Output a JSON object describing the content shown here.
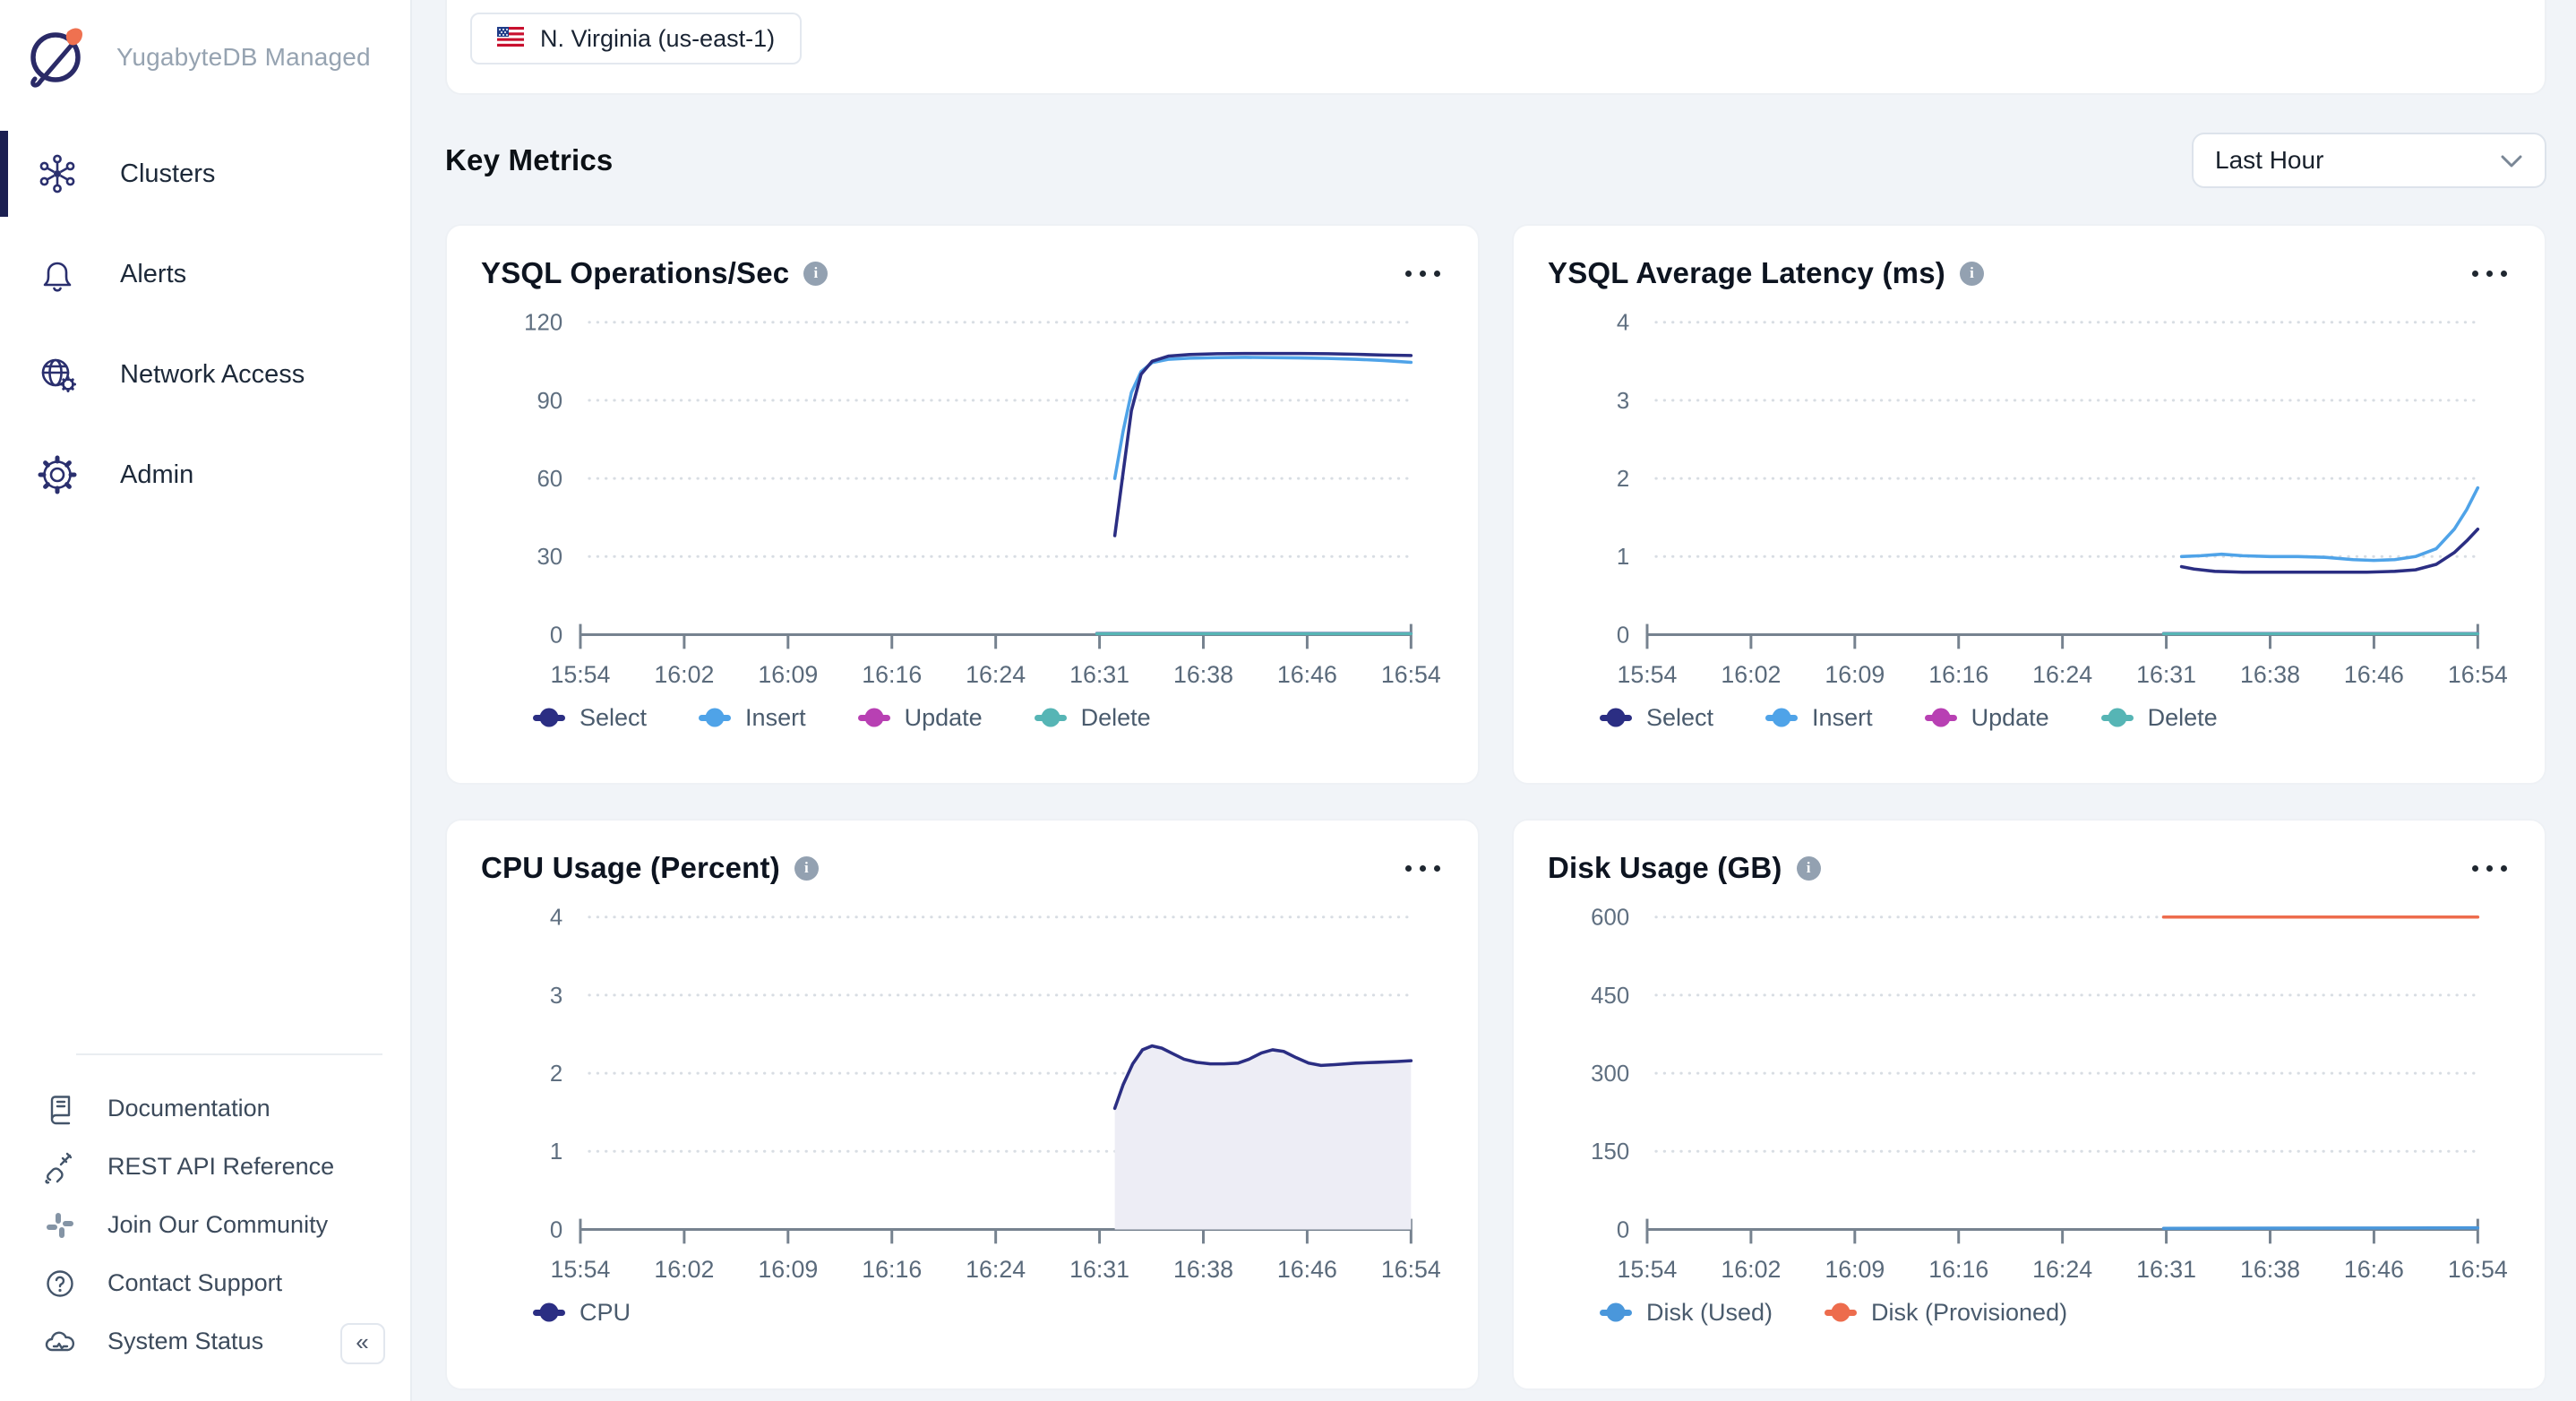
{
  "app": {
    "brand": "YugabyteDB Managed"
  },
  "sidebar": {
    "items": [
      {
        "label": "Clusters",
        "icon": "clusters-icon",
        "active": true
      },
      {
        "label": "Alerts",
        "icon": "bell-icon",
        "active": false
      },
      {
        "label": "Network Access",
        "icon": "globe-gear-icon",
        "active": false
      },
      {
        "label": "Admin",
        "icon": "gear-icon",
        "active": false
      }
    ],
    "footer_items": [
      {
        "label": "Documentation",
        "icon": "book-icon"
      },
      {
        "label": "REST API Reference",
        "icon": "plug-icon"
      },
      {
        "label": "Join Our Community",
        "icon": "slack-icon"
      },
      {
        "label": "Contact Support",
        "icon": "question-circle-icon"
      },
      {
        "label": "System Status",
        "icon": "cloud-status-icon"
      }
    ]
  },
  "header": {
    "region": {
      "label": "N. Virginia (us-east-1)",
      "flag": "us-flag-icon"
    },
    "section_title": "Key Metrics",
    "time_range_selected": "Last Hour"
  },
  "colors": {
    "select_navy": "#2B2E83",
    "insert_blue": "#4FA3E8",
    "update_magenta": "#B840B3",
    "delete_teal": "#56B5B5",
    "disk_used_blue": "#4A97DB",
    "disk_provisioned_orange": "#ED6C4D",
    "cpu_fill": "#EDEDF5",
    "accent_navy": "#1B1F51"
  },
  "chart_data": [
    {
      "type": "line",
      "title": "YSQL Operations/Sec",
      "x_tick_labels": [
        "15:54",
        "16:02",
        "16:09",
        "16:16",
        "16:24",
        "16:31",
        "16:38",
        "16:46",
        "16:54"
      ],
      "x_domain_minutes": [
        0,
        60
      ],
      "ylim": [
        0,
        120
      ],
      "yticks": [
        0,
        30,
        60,
        90,
        120
      ],
      "grid": "dotted-horizontal",
      "legend_position": "bottom",
      "series": [
        {
          "name": "Update",
          "color": "#B840B3",
          "points": [
            [
              37.3,
              0.5
            ],
            [
              60,
              0.5
            ]
          ]
        },
        {
          "name": "Delete",
          "color": "#56B5B5",
          "points": [
            [
              37.3,
              0.4
            ],
            [
              60,
              0.4
            ]
          ]
        },
        {
          "name": "Insert",
          "color": "#4FA3E8",
          "points": [
            [
              38.6,
              60
            ],
            [
              39.2,
              78
            ],
            [
              39.8,
              93
            ],
            [
              40.5,
              101
            ],
            [
              41.3,
              104.5
            ],
            [
              42.5,
              105.8
            ],
            [
              44,
              106.2
            ],
            [
              46,
              106.4
            ],
            [
              48,
              106.5
            ],
            [
              50,
              106.4
            ],
            [
              52,
              106.3
            ],
            [
              54,
              106.1
            ],
            [
              56,
              105.8
            ],
            [
              58,
              105.3
            ],
            [
              60,
              104.6
            ]
          ]
        },
        {
          "name": "Select",
          "color": "#2B2E83",
          "points": [
            [
              38.6,
              38
            ],
            [
              39.2,
              62
            ],
            [
              39.8,
              86
            ],
            [
              40.5,
              100
            ],
            [
              41.3,
              105
            ],
            [
              42.5,
              107
            ],
            [
              44,
              107.6
            ],
            [
              46,
              107.9
            ],
            [
              48,
              108
            ],
            [
              50,
              108
            ],
            [
              52,
              108
            ],
            [
              54,
              107.9
            ],
            [
              56,
              107.7
            ],
            [
              58,
              107.4
            ],
            [
              60,
              107.2
            ]
          ]
        }
      ],
      "legend_order": [
        "Select",
        "Insert",
        "Update",
        "Delete"
      ]
    },
    {
      "type": "line",
      "title": "YSQL Average Latency (ms)",
      "x_tick_labels": [
        "15:54",
        "16:02",
        "16:09",
        "16:16",
        "16:24",
        "16:31",
        "16:38",
        "16:46",
        "16:54"
      ],
      "x_domain_minutes": [
        0,
        60
      ],
      "ylim": [
        0,
        4
      ],
      "yticks": [
        0,
        1,
        2,
        3,
        4
      ],
      "grid": "dotted-horizontal",
      "legend_position": "bottom",
      "series": [
        {
          "name": "Update",
          "color": "#B840B3",
          "points": [
            [
              37.3,
              0.015
            ],
            [
              60,
              0.015
            ]
          ]
        },
        {
          "name": "Delete",
          "color": "#56B5B5",
          "points": [
            [
              37.3,
              0.012
            ],
            [
              60,
              0.012
            ]
          ]
        },
        {
          "name": "Insert",
          "color": "#4FA3E8",
          "points": [
            [
              38.6,
              1.0
            ],
            [
              40,
              1.01
            ],
            [
              41.5,
              1.03
            ],
            [
              43,
              1.01
            ],
            [
              45,
              1.0
            ],
            [
              47,
              1.0
            ],
            [
              49,
              0.99
            ],
            [
              51,
              0.96
            ],
            [
              52.5,
              0.95
            ],
            [
              54,
              0.96
            ],
            [
              55.5,
              1.0
            ],
            [
              57,
              1.1
            ],
            [
              58.3,
              1.35
            ],
            [
              59.2,
              1.6
            ],
            [
              60,
              1.88
            ]
          ]
        },
        {
          "name": "Select",
          "color": "#2B2E83",
          "points": [
            [
              38.6,
              0.87
            ],
            [
              39.5,
              0.84
            ],
            [
              41,
              0.81
            ],
            [
              43,
              0.8
            ],
            [
              46,
              0.8
            ],
            [
              49,
              0.8
            ],
            [
              52,
              0.8
            ],
            [
              54,
              0.81
            ],
            [
              55.5,
              0.83
            ],
            [
              57,
              0.9
            ],
            [
              58.3,
              1.05
            ],
            [
              59.2,
              1.2
            ],
            [
              60,
              1.35
            ]
          ]
        }
      ],
      "legend_order": [
        "Select",
        "Insert",
        "Update",
        "Delete"
      ]
    },
    {
      "type": "area",
      "title": "CPU Usage (Percent)",
      "x_tick_labels": [
        "15:54",
        "16:02",
        "16:09",
        "16:16",
        "16:24",
        "16:31",
        "16:38",
        "16:46",
        "16:54"
      ],
      "x_domain_minutes": [
        0,
        60
      ],
      "ylim": [
        0,
        4
      ],
      "yticks": [
        0,
        1,
        2,
        3,
        4
      ],
      "grid": "dotted-horizontal",
      "legend_position": "bottom",
      "series": [
        {
          "name": "CPU",
          "color": "#2B2E83",
          "fill": "#EDEDF5",
          "points": [
            [
              38.6,
              1.55
            ],
            [
              39.2,
              1.85
            ],
            [
              39.9,
              2.12
            ],
            [
              40.6,
              2.3
            ],
            [
              41.3,
              2.35
            ],
            [
              42,
              2.32
            ],
            [
              42.8,
              2.25
            ],
            [
              43.6,
              2.18
            ],
            [
              44.5,
              2.14
            ],
            [
              45.5,
              2.12
            ],
            [
              46.5,
              2.12
            ],
            [
              47.5,
              2.13
            ],
            [
              48.3,
              2.18
            ],
            [
              49.2,
              2.26
            ],
            [
              50,
              2.3
            ],
            [
              50.8,
              2.28
            ],
            [
              51.7,
              2.2
            ],
            [
              52.6,
              2.13
            ],
            [
              53.5,
              2.1
            ],
            [
              54.5,
              2.11
            ],
            [
              56,
              2.13
            ],
            [
              57.5,
              2.14
            ],
            [
              59,
              2.15
            ],
            [
              60,
              2.16
            ]
          ]
        }
      ],
      "legend_order": [
        "CPU"
      ]
    },
    {
      "type": "line",
      "title": "Disk Usage (GB)",
      "x_tick_labels": [
        "15:54",
        "16:02",
        "16:09",
        "16:16",
        "16:24",
        "16:31",
        "16:38",
        "16:46",
        "16:54"
      ],
      "x_domain_minutes": [
        0,
        60
      ],
      "ylim": [
        0,
        600
      ],
      "yticks": [
        0,
        150,
        300,
        450,
        600
      ],
      "grid": "dotted-horizontal",
      "legend_position": "bottom",
      "series": [
        {
          "name": "Disk (Used)",
          "color": "#4A97DB",
          "points": [
            [
              37.3,
              2
            ],
            [
              60,
              3
            ]
          ]
        },
        {
          "name": "Disk (Provisioned)",
          "color": "#ED6C4D",
          "points": [
            [
              37.3,
              600
            ],
            [
              60,
              600
            ]
          ]
        }
      ],
      "legend_order": [
        "Disk (Used)",
        "Disk (Provisioned)"
      ]
    }
  ]
}
